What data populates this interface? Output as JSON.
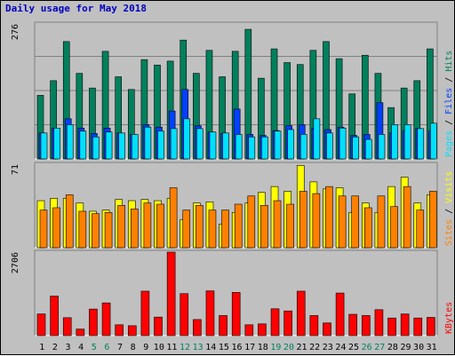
{
  "title": "Daily usage for May 2018",
  "colors": {
    "hits": "#00805c",
    "files": "#0040ff",
    "pages": "#00e0ff",
    "visits": "#ffff00",
    "sites": "#ff8000",
    "kbytes": "#ff0000",
    "weekend_label": "#00805c",
    "weekday_label": "#000000"
  },
  "chart_data": [
    {
      "type": "bar",
      "panel": "hits-files-pages",
      "ymax_label": "276",
      "ylim": [
        0,
        276
      ],
      "side_label": [
        "Pages",
        "Files",
        "Hits"
      ],
      "series": [
        {
          "name": "Hits",
          "values": [
            130,
            160,
            240,
            175,
            145,
            220,
            168,
            142,
            203,
            192,
            200,
            243,
            175,
            222,
            168,
            220,
            265,
            165,
            225,
            197,
            193,
            222,
            240,
            205,
            133,
            212,
            175,
            105,
            145,
            160,
            225
          ]
        },
        {
          "name": "Files",
          "values": [
            53,
            63,
            82,
            63,
            52,
            63,
            53,
            50,
            70,
            65,
            98,
            142,
            68,
            55,
            52,
            102,
            50,
            48,
            58,
            68,
            70,
            63,
            60,
            65,
            48,
            50,
            115,
            53,
            58,
            62,
            57
          ]
        },
        {
          "name": "Pages",
          "values": [
            53,
            63,
            70,
            57,
            45,
            55,
            53,
            50,
            65,
            57,
            62,
            82,
            62,
            55,
            53,
            50,
            45,
            45,
            57,
            60,
            50,
            82,
            53,
            63,
            45,
            40,
            50,
            70,
            70,
            62,
            73
          ]
        }
      ]
    },
    {
      "type": "bar",
      "panel": "visits-sites",
      "ymax_label": "71",
      "ylim": [
        0,
        71
      ],
      "side_label": [
        "Sites",
        "Visits"
      ],
      "series": [
        {
          "name": "Visits",
          "values": [
            40,
            42,
            42,
            38,
            31,
            32,
            41,
            40,
            41,
            40,
            42,
            24,
            38,
            39,
            20,
            30,
            38,
            47,
            52,
            48,
            70,
            56,
            50,
            51,
            30,
            38,
            30,
            52,
            60,
            38,
            45
          ]
        },
        {
          "name": "Sites",
          "values": [
            32,
            34,
            45,
            31,
            29,
            30,
            36,
            33,
            38,
            37,
            51,
            32,
            36,
            32,
            32,
            37,
            44,
            36,
            40,
            37,
            48,
            46,
            52,
            44,
            44,
            34,
            44,
            35,
            52,
            32,
            48
          ]
        }
      ]
    },
    {
      "type": "bar",
      "panel": "kbytes",
      "ymax_label": "2706",
      "ylim": [
        0,
        2706
      ],
      "side_label": [
        "KBytes"
      ],
      "series": [
        {
          "name": "KBytes",
          "values": [
            700,
            1280,
            580,
            210,
            860,
            1060,
            350,
            320,
            1440,
            600,
            2706,
            1360,
            520,
            1450,
            650,
            1400,
            350,
            380,
            870,
            800,
            1440,
            650,
            410,
            1380,
            690,
            650,
            840,
            570,
            700,
            570,
            590
          ]
        }
      ]
    }
  ],
  "x_labels": [
    "1",
    "2",
    "3",
    "4",
    "5",
    "6",
    "7",
    "8",
    "9",
    "10",
    "11",
    "12",
    "13",
    "14",
    "15",
    "16",
    "17",
    "18",
    "19",
    "20",
    "21",
    "22",
    "23",
    "24",
    "25",
    "26",
    "27",
    "28",
    "29",
    "30",
    "31"
  ],
  "weekend_days": [
    5,
    6,
    12,
    13,
    19,
    20,
    26,
    27
  ]
}
